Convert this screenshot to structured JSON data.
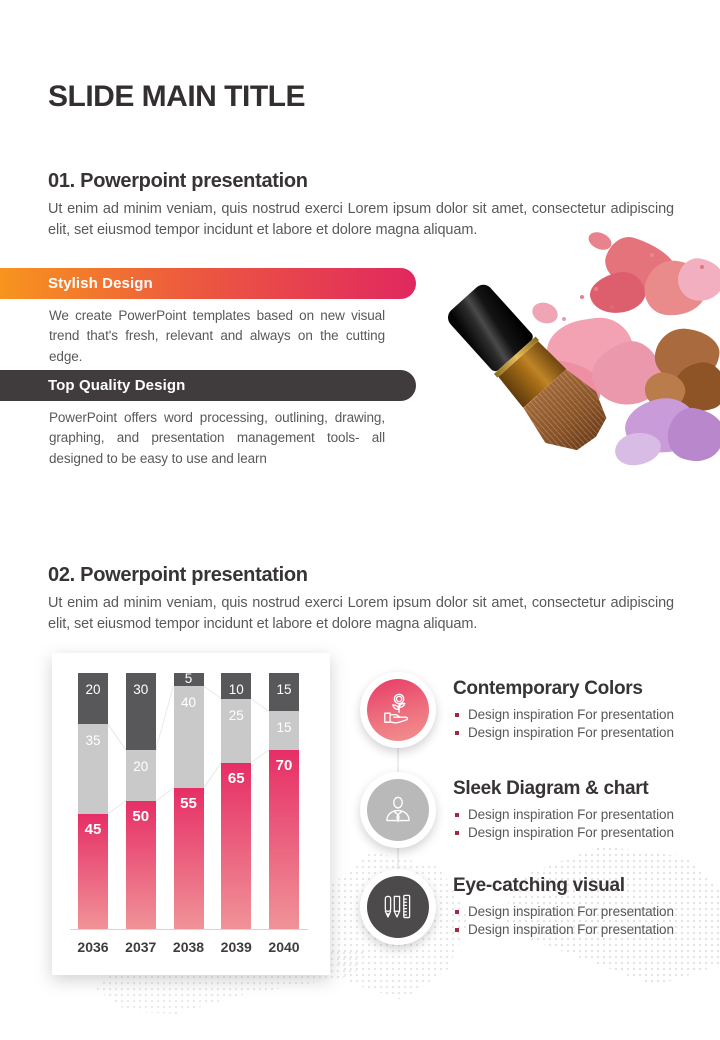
{
  "slide": {
    "title": "SLIDE MAIN TITLE"
  },
  "section1": {
    "heading": "01. Powerpoint presentation",
    "body": "Ut enim ad minim veniam, quis nostrud exerci Lorem ipsum dolor sit amet, consectetur adipiscing elit, set eiusmod tempor incidunt et labore et dolore magna aliquam.",
    "banners": [
      {
        "label": "Stylish Design",
        "description": "We create PowerPoint templates based on new visual trend that's fresh, relevant and always on the cutting edge."
      },
      {
        "label": "Top Quality Design",
        "description": "PowerPoint offers word processing, outlining, drawing, graphing, and presentation management tools- all designed to be easy to use and learn"
      }
    ],
    "photo": "makeup-brush-with-crushed-powder"
  },
  "section2": {
    "heading": "02. Powerpoint presentation",
    "body": "Ut enim ad minim veniam, quis nostrud exerci Lorem ipsum dolor sit amet, consectetur adipiscing elit, set eiusmod tempor incidunt et labore et dolore magna aliquam.",
    "features": [
      {
        "icon": "hand-money-plant-icon",
        "title": "Contemporary Colors",
        "bullets": [
          "Design inspiration For presentation",
          "Design inspiration For presentation"
        ]
      },
      {
        "icon": "businessman-icon",
        "title": "Sleek Diagram & chart",
        "bullets": [
          "Design inspiration For presentation",
          "Design inspiration For presentation"
        ]
      },
      {
        "icon": "stationery-icon",
        "title": "Eye-catching visual",
        "bullets": [
          "Design inspiration For presentation",
          "Design inspiration For presentation"
        ]
      }
    ]
  },
  "chart_data": {
    "type": "bar",
    "subtype": "stacked-100",
    "categories": [
      "2036",
      "2037",
      "2038",
      "2039",
      "2040"
    ],
    "series": [
      {
        "name": "bottom-pink",
        "color_top": "#E62E66",
        "color_bottom": "#F09397",
        "values": [
          45,
          50,
          55,
          65,
          70
        ]
      },
      {
        "name": "middle-gray",
        "color": "#C9C9C9",
        "values": [
          35,
          20,
          40,
          25,
          15
        ]
      },
      {
        "name": "top-charcoal",
        "color": "#58585A",
        "values": [
          20,
          30,
          5,
          10,
          15
        ]
      }
    ],
    "ylim": [
      0,
      100
    ],
    "grid": false,
    "legend": false,
    "connector_color": "#e9e9e9"
  },
  "colors": {
    "accent_gradient_start": "#F7941E",
    "accent_gradient_end": "#E02860",
    "dark_banner": "#403C3D",
    "heading_text": "#383434",
    "body_text": "#595959",
    "bullet_marker": "#A12A40"
  }
}
